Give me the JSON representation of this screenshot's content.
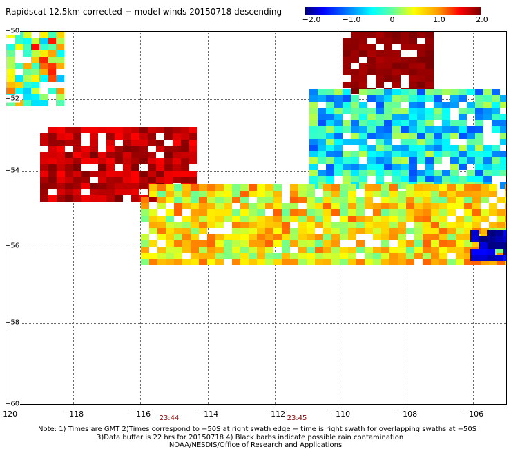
{
  "title": "Rapidscat 12.5km corrected − model winds 20150718 descending",
  "colorbar": {
    "labels": [
      "−2.0",
      "−1.0",
      "0",
      "1.0",
      "2.0"
    ],
    "range": [
      -2.0,
      2.0
    ],
    "colors": [
      "#00007a",
      "#0000ff",
      "#00ffff",
      "#ffff00",
      "#ff0000",
      "#7a0000"
    ]
  },
  "axes": {
    "x_ticks": [
      "−120",
      "−118",
      "−116",
      "−114",
      "−112",
      "−110",
      "−108",
      "−106"
    ],
    "y_ticks": [
      "−50",
      "−52",
      "−54",
      "−56",
      "−58",
      "−60"
    ],
    "lon_range": [
      -120,
      -105
    ],
    "lat_range": [
      -50,
      -60
    ],
    "grid": true
  },
  "time_labels": [
    "23:44",
    "23:45"
  ],
  "notes": {
    "line1": "Note: 1) Times are GMT 2)Times correspond to −50S at right swath edge − time is right swath for overlapping swaths at −50S",
    "line2": "3)Data buffer is 22 hrs for 20150718 4) Black barbs indicate possible rain contamination",
    "line3": "NOAA/NESDIS/Office of Research and Applications"
  },
  "chart_data": {
    "type": "heatmap",
    "variable": "wind speed difference",
    "value_range": [
      -2.0,
      2.0
    ],
    "regions": [
      {
        "lon": [
          -120,
          -118.3
        ],
        "lat": [
          -50,
          -51.8
        ],
        "values": [
          -0.8,
          1.5
        ]
      },
      {
        "lon": [
          -110,
          -107.3
        ],
        "lat": [
          -50,
          -51.5
        ],
        "values": [
          1.8,
          2.0
        ]
      },
      {
        "lon": [
          -119,
          -114.5
        ],
        "lat": [
          -52.5,
          -54.3
        ],
        "values": [
          1.5,
          2.0
        ]
      },
      {
        "lon": [
          -111,
          -105
        ],
        "lat": [
          -51.5,
          -54
        ],
        "values": [
          -1.2,
          0.3
        ]
      },
      {
        "lon": [
          -116,
          -105
        ],
        "lat": [
          -54,
          -56
        ],
        "values": [
          0.0,
          1.2
        ]
      },
      {
        "lon": [
          -106.2,
          -105
        ],
        "lat": [
          -55.2,
          -56
        ],
        "values": [
          -2.0,
          -1.5
        ]
      }
    ]
  }
}
